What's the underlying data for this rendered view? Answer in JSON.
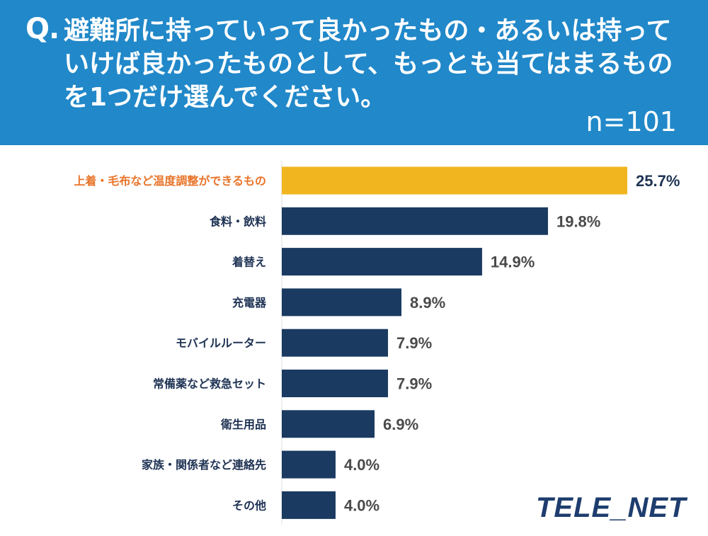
{
  "header": {
    "q_mark": "Q.",
    "question": "避難所に持っていって良かったもの・あるいは持っていけば良かったものとして、もっとも当てはまるものを1つだけ選んでください。",
    "n_label": "n=101"
  },
  "logo": {
    "text": "TELE_NET"
  },
  "colors": {
    "header_bg": "#2188c9",
    "highlight_bar": "#f1b61f",
    "highlight_label": "#e8742a",
    "bar": "#1a3a61",
    "label": "#1f3354",
    "value": "#4a4a4a",
    "top_value": "#1f3354"
  },
  "chart_data": {
    "type": "bar",
    "orientation": "horizontal",
    "categories": [
      "上着・毛布など温度調整ができるもの",
      "食料・飲料",
      "着替え",
      "充電器",
      "モバイルルーター",
      "常備薬など救急セット",
      "衛生用品",
      "家族・関係者など連絡先",
      "その他"
    ],
    "values": [
      25.7,
      19.8,
      14.9,
      8.9,
      7.9,
      7.9,
      6.9,
      4.0,
      4.0
    ],
    "value_labels": [
      "25.7%",
      "19.8%",
      "14.9%",
      "8.9%",
      "7.9%",
      "7.9%",
      "6.9%",
      "4.0%",
      "4.0%"
    ],
    "highlight_index": 0,
    "unit": "%",
    "xlim": [
      0,
      25.7
    ]
  }
}
